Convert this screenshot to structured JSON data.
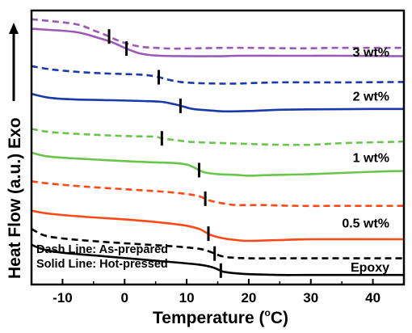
{
  "chart_data": {
    "type": "line",
    "xlabel_main": "Temperature (",
    "xlabel_deg": "o",
    "xlabel_unit": "C)",
    "ylabel": "Heat Flow (a.u.) Exo",
    "xlim": [
      -15,
      45
    ],
    "xticks": [
      -10,
      0,
      10,
      20,
      30,
      40
    ],
    "y_ticks_shown": false,
    "grid": false,
    "notes": [
      "Dash Line: As-prepared",
      "Solid Line: Hot-pressed"
    ],
    "line_styles": {
      "dashed": "As-prepared",
      "solid": "Hot-pressed"
    },
    "series": [
      {
        "name": "3 wt%",
        "color": "#9a59b5",
        "dashed": {
          "x": [
            -15,
            -8,
            -5,
            -3,
            -1,
            1,
            3,
            5,
            8,
            12,
            16,
            20,
            26,
            30,
            34,
            45
          ],
          "y": [
            1.14,
            1.08,
            1.0,
            0.94,
            0.87,
            0.82,
            0.79,
            0.78,
            0.77,
            0.775,
            0.78,
            0.78,
            0.775,
            0.775,
            0.78,
            0.78
          ],
          "tg": -2.5
        },
        "solid": {
          "x": [
            -15,
            -8,
            -4,
            -2,
            0,
            2,
            4,
            6,
            10,
            14,
            16,
            18,
            25,
            30,
            35,
            45
          ],
          "y": [
            1.02,
            0.98,
            0.9,
            0.85,
            0.78,
            0.72,
            0.69,
            0.68,
            0.675,
            0.675,
            0.675,
            0.68,
            0.68,
            0.68,
            0.68,
            0.675
          ],
          "tg": 0.3
        }
      },
      {
        "name": "2 wt%",
        "color": "#1a3aa8",
        "dashed": {
          "x": [
            -15,
            -12,
            -8,
            -4,
            0,
            3,
            5,
            7,
            9,
            12,
            15,
            18,
            22,
            25,
            30,
            36,
            45
          ],
          "y": [
            0.55,
            0.51,
            0.48,
            0.46,
            0.45,
            0.44,
            0.42,
            0.38,
            0.35,
            0.335,
            0.33,
            0.33,
            0.34,
            0.345,
            0.345,
            0.345,
            0.35
          ],
          "tg": 5.5
        },
        "solid": {
          "x": [
            -15,
            -12,
            -8,
            -2,
            3,
            6,
            8,
            9.5,
            11,
            14,
            16,
            20,
            25,
            30,
            40,
            45
          ],
          "y": [
            0.2,
            0.15,
            0.13,
            0.12,
            0.11,
            0.1,
            0.07,
            0.04,
            0.01,
            -0.01,
            -0.02,
            -0.015,
            0.0,
            0.005,
            0.01,
            0.01
          ],
          "tg": 9.0
        }
      },
      {
        "name": "1 wt%",
        "color": "#6ac54b",
        "dashed": {
          "x": [
            -15,
            -12,
            -6,
            0,
            3,
            5,
            6,
            8,
            10,
            12,
            16,
            20,
            25,
            30,
            35,
            40,
            45
          ],
          "y": [
            -0.24,
            -0.28,
            -0.31,
            -0.33,
            -0.335,
            -0.34,
            -0.36,
            -0.38,
            -0.4,
            -0.41,
            -0.42,
            -0.43,
            -0.44,
            -0.44,
            -0.42,
            -0.41,
            -0.4
          ],
          "tg": 6.0
        },
        "solid": {
          "x": [
            -15,
            -12,
            -4,
            4,
            8,
            10,
            11,
            12,
            13,
            15,
            18,
            20,
            24,
            30,
            40,
            45
          ],
          "y": [
            -0.54,
            -0.59,
            -0.63,
            -0.66,
            -0.67,
            -0.69,
            -0.72,
            -0.76,
            -0.79,
            -0.81,
            -0.82,
            -0.83,
            -0.82,
            -0.81,
            -0.78,
            -0.77
          ],
          "tg": 12.0
        }
      },
      {
        "name": "0.5 wt%",
        "color": "#ff4a18",
        "dashed": {
          "x": [
            -15,
            -12,
            -6,
            0,
            6,
            10,
            12,
            13,
            14,
            16,
            18,
            22,
            28,
            35,
            45
          ],
          "y": [
            -0.9,
            -0.93,
            -0.97,
            -1.0,
            -1.03,
            -1.06,
            -1.09,
            -1.12,
            -1.15,
            -1.18,
            -1.2,
            -1.2,
            -1.21,
            -1.21,
            -1.21
          ],
          "tg": 13.0
        },
        "solid": {
          "x": [
            -15,
            -12,
            -6,
            0,
            6,
            10,
            12,
            13,
            14,
            16,
            18,
            20,
            25,
            30,
            45
          ],
          "y": [
            -1.27,
            -1.31,
            -1.35,
            -1.38,
            -1.42,
            -1.46,
            -1.5,
            -1.54,
            -1.58,
            -1.62,
            -1.64,
            -1.65,
            -1.64,
            -1.63,
            -1.63
          ],
          "tg": 13.5
        }
      },
      {
        "name": "Epoxy",
        "color": "#000000",
        "dashed": {
          "x": [
            -15,
            -13,
            -10,
            -4,
            2,
            8,
            12,
            13.5,
            14.5,
            15.5,
            17,
            20,
            25,
            30,
            45
          ],
          "y": [
            -1.5,
            -1.58,
            -1.62,
            -1.66,
            -1.69,
            -1.72,
            -1.75,
            -1.78,
            -1.81,
            -1.84,
            -1.86,
            -1.87,
            -1.87,
            -1.87,
            -1.87
          ],
          "tg": 14.5
        },
        "solid": {
          "x": [
            -15,
            -13,
            -10,
            -4,
            2,
            8,
            12,
            14,
            15,
            16,
            18,
            20,
            25,
            30,
            45
          ],
          "y": [
            -1.7,
            -1.76,
            -1.8,
            -1.84,
            -1.88,
            -1.92,
            -1.95,
            -1.98,
            -2.01,
            -2.04,
            -2.06,
            -2.07,
            -2.08,
            -2.08,
            -2.08
          ],
          "tg": 15.5
        }
      }
    ]
  }
}
